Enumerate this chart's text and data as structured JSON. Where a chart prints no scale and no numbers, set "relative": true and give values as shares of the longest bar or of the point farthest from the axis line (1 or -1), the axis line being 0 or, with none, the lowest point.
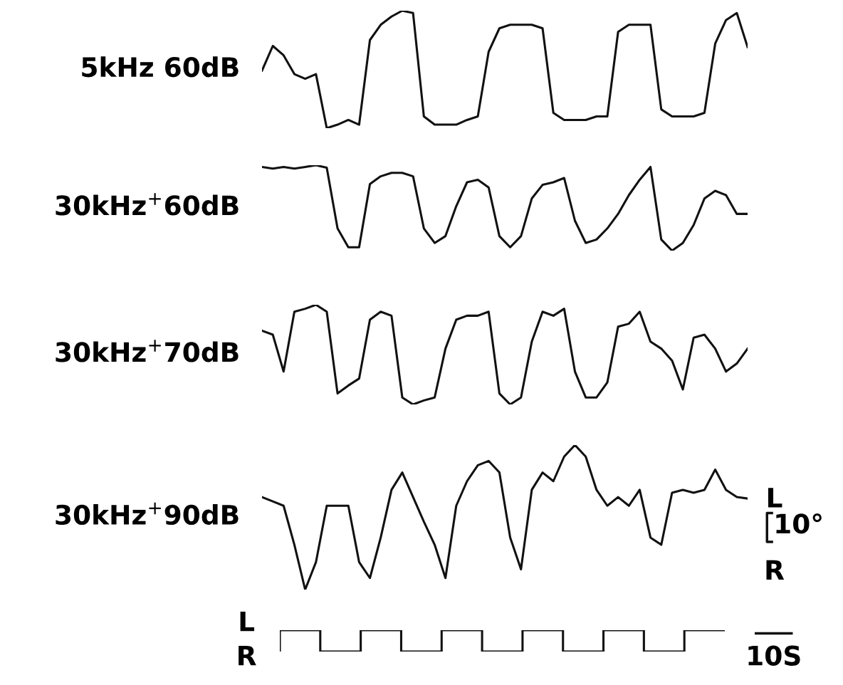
{
  "chart_data": [
    {
      "type": "line",
      "relative": true,
      "ylabel": "5kHz 60dB",
      "color": "#111111",
      "categories": [
        null,
        null,
        null,
        null,
        null,
        null,
        null,
        null,
        null,
        null,
        null,
        null,
        null,
        null,
        null,
        null,
        null,
        null,
        null,
        null,
        null,
        null,
        null,
        null,
        null,
        null,
        null,
        null,
        null,
        null,
        null,
        null,
        null,
        null,
        null,
        null,
        null,
        null,
        null,
        null,
        null,
        null,
        null,
        null,
        null,
        null
      ],
      "values": [
        0.49,
        0.7,
        0.62,
        0.46,
        0.42,
        0.46,
        0,
        0.03,
        0.07,
        0.03,
        0.75,
        0.88,
        0.95,
        1,
        0.98,
        0.1,
        0.03,
        0.03,
        0.03,
        0.07,
        0.1,
        0.65,
        0.85,
        0.88,
        0.88,
        0.88,
        0.85,
        0.13,
        0.07,
        0.07,
        0.07,
        0.1,
        0.1,
        0.82,
        0.88,
        0.88,
        0.88,
        0.16,
        0.1,
        0.1,
        0.1,
        0.13,
        0.72,
        0.92,
        0.98,
        0.69
      ]
    },
    {
      "type": "line",
      "relative": true,
      "ylabel": "30kHz$^{+}$60dB",
      "color": "#111111",
      "categories": [
        null,
        null,
        null,
        null,
        null,
        null,
        null,
        null,
        null,
        null,
        null,
        null,
        null,
        null,
        null,
        null,
        null,
        null,
        null,
        null,
        null,
        null,
        null,
        null,
        null,
        null,
        null,
        null,
        null,
        null,
        null,
        null,
        null,
        null,
        null,
        null,
        null,
        null,
        null,
        null,
        null,
        null,
        null,
        null,
        null,
        null
      ],
      "values": [
        0.98,
        0.96,
        0.98,
        0.96,
        0.98,
        1,
        0.97,
        0.26,
        0.04,
        0.04,
        0.78,
        0.87,
        0.91,
        0.91,
        0.87,
        0.26,
        0.09,
        0.17,
        0.52,
        0.8,
        0.83,
        0.74,
        0.17,
        0.04,
        0.17,
        0.61,
        0.77,
        0.8,
        0.85,
        0.35,
        0.09,
        0.13,
        0.26,
        0.43,
        0.65,
        0.83,
        0.98,
        0.13,
        0,
        0.09,
        0.3,
        0.61,
        0.7,
        0.65,
        0.43,
        0.43
      ]
    },
    {
      "type": "line",
      "relative": true,
      "ylabel": "30kHz$^{+}$70dB",
      "color": "#111111",
      "categories": [
        null,
        null,
        null,
        null,
        null,
        null,
        null,
        null,
        null,
        null,
        null,
        null,
        null,
        null,
        null,
        null,
        null,
        null,
        null,
        null,
        null,
        null,
        null,
        null,
        null,
        null,
        null,
        null,
        null,
        null,
        null,
        null,
        null,
        null,
        null,
        null,
        null,
        null,
        null,
        null,
        null,
        null,
        null,
        null,
        null,
        null
      ],
      "values": [
        0.74,
        0.7,
        0.33,
        0.93,
        0.96,
        1,
        0.93,
        0.11,
        0.19,
        0.26,
        0.85,
        0.93,
        0.89,
        0.07,
        0,
        0.04,
        0.07,
        0.56,
        0.85,
        0.89,
        0.89,
        0.93,
        0.11,
        0,
        0.07,
        0.63,
        0.93,
        0.89,
        0.96,
        0.33,
        0.07,
        0.07,
        0.22,
        0.78,
        0.81,
        0.93,
        0.63,
        0.56,
        0.44,
        0.15,
        0.67,
        0.7,
        0.56,
        0.33,
        0.41,
        0.56
      ]
    },
    {
      "type": "line",
      "relative": true,
      "ylabel": "30kHz$^{+}$90dB",
      "color": "#111111",
      "annotations": [
        "L",
        "10°",
        "R"
      ],
      "categories": [
        null,
        null,
        null,
        null,
        null,
        null,
        null,
        null,
        null,
        null,
        null,
        null,
        null,
        null,
        null,
        null,
        null,
        null,
        null,
        null,
        null,
        null,
        null,
        null,
        null,
        null,
        null,
        null,
        null,
        null,
        null,
        null,
        null,
        null,
        null,
        null,
        null,
        null,
        null,
        null,
        null,
        null,
        null,
        null,
        null,
        null
      ],
      "values": [
        0.64,
        0.61,
        0.58,
        0.31,
        0,
        0.19,
        0.58,
        0.58,
        0.58,
        0.19,
        0.08,
        0.36,
        0.69,
        0.81,
        0.64,
        0.47,
        0.31,
        0.08,
        0.58,
        0.75,
        0.86,
        0.89,
        0.81,
        0.36,
        0.14,
        0.69,
        0.81,
        0.75,
        0.92,
        1,
        0.92,
        0.69,
        0.58,
        0.64,
        0.58,
        0.69,
        0.36,
        0.31,
        0.67,
        0.69,
        0.67,
        0.69,
        0.83,
        0.69,
        0.64,
        0.63
      ]
    },
    {
      "type": "step",
      "relative": true,
      "color": "#111111",
      "annotations": [
        "L",
        "R",
        "10S"
      ],
      "categories": [
        null,
        null,
        null,
        null,
        null,
        null,
        null,
        null,
        null,
        null,
        null,
        null
      ],
      "values": [
        0,
        1,
        0,
        1,
        0,
        1,
        0,
        1,
        0,
        1,
        0,
        1
      ]
    }
  ]
}
